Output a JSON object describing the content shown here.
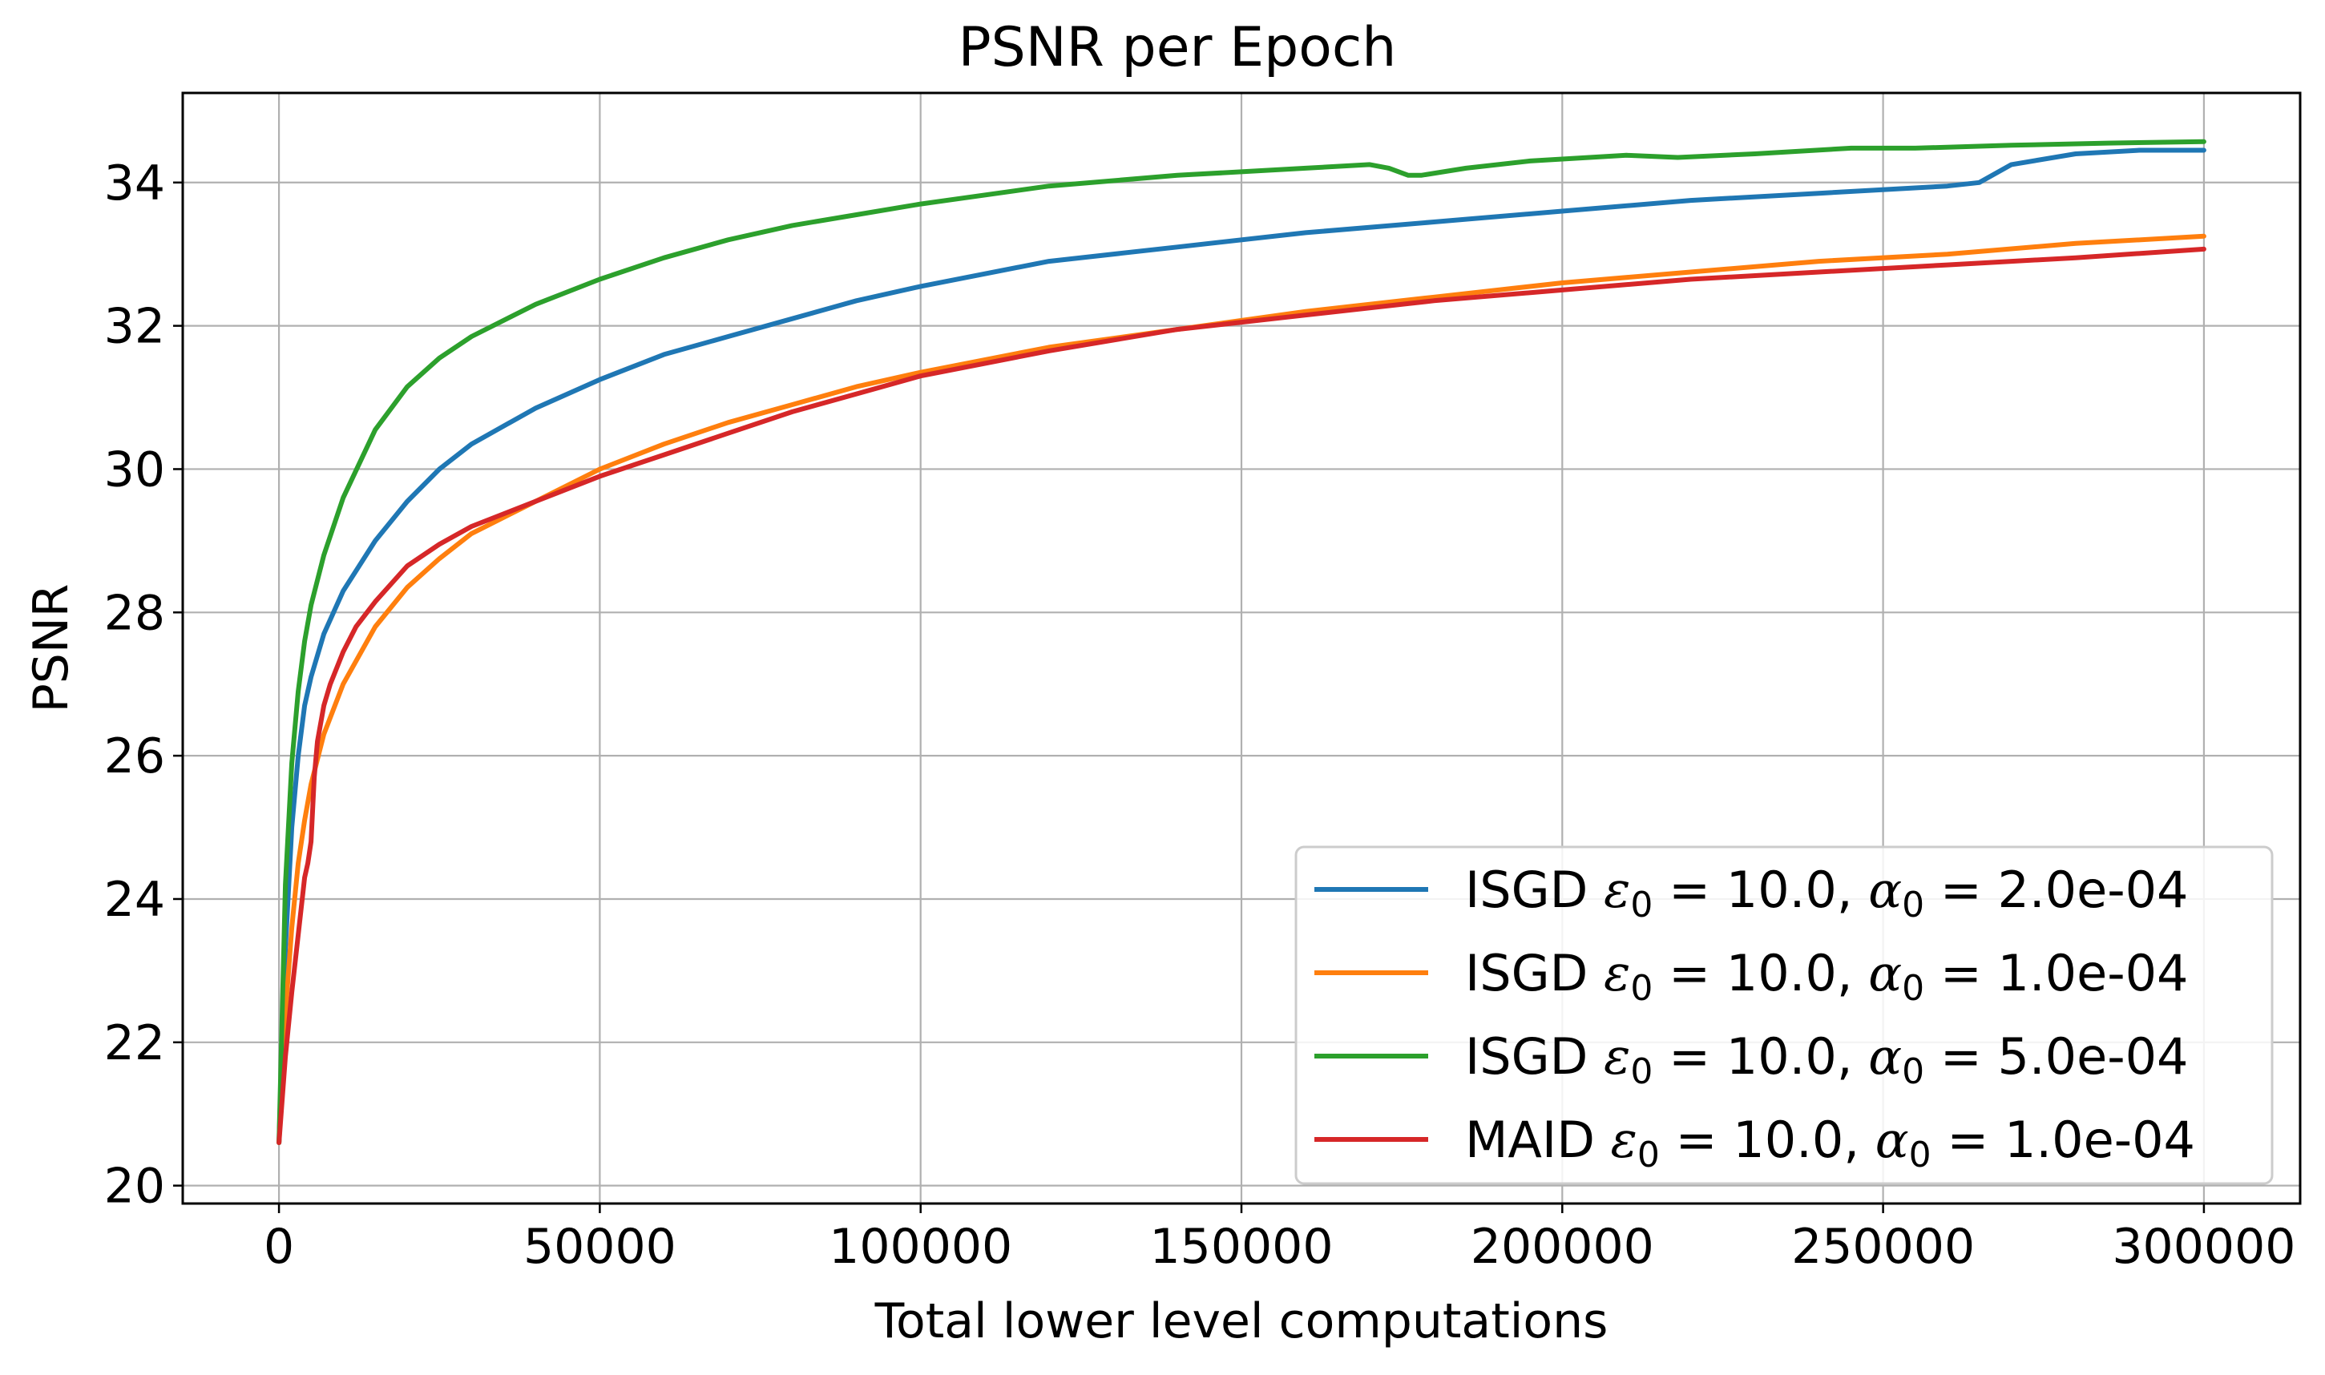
{
  "chart_data": {
    "type": "line",
    "title": "PSNR per Epoch",
    "xlabel": "Total lower level computations",
    "ylabel": "PSNR",
    "xlim": [
      -15000,
      315000
    ],
    "ylim": [
      19.75,
      35.25
    ],
    "xticks": [
      0,
      50000,
      100000,
      150000,
      200000,
      250000,
      300000
    ],
    "xtick_labels": [
      "0",
      "50000",
      "100000",
      "150000",
      "200000",
      "250000",
      "300000"
    ],
    "yticks": [
      20,
      22,
      24,
      26,
      28,
      30,
      32,
      34
    ],
    "ytick_labels": [
      "20",
      "22",
      "24",
      "26",
      "28",
      "30",
      "32",
      "34"
    ],
    "grid": true,
    "legend_position": "lower-right",
    "series": [
      {
        "name": "ISGD ε0 = 10.0, α0 = 2.0e-04",
        "legend": {
          "method": "ISGD",
          "eps": "10.0",
          "alpha": "2.0e-04"
        },
        "color": "#1f77b4",
        "x": [
          0,
          1000,
          2000,
          3000,
          4000,
          5000,
          7000,
          10000,
          15000,
          20000,
          25000,
          30000,
          40000,
          50000,
          60000,
          70000,
          80000,
          90000,
          100000,
          120000,
          140000,
          160000,
          180000,
          200000,
          220000,
          240000,
          260000,
          265000,
          270000,
          280000,
          290000,
          300000
        ],
        "y": [
          20.6,
          23.3,
          25.0,
          26.0,
          26.7,
          27.1,
          27.7,
          28.3,
          29.0,
          29.55,
          30.0,
          30.35,
          30.85,
          31.25,
          31.6,
          31.85,
          32.1,
          32.35,
          32.55,
          32.9,
          33.1,
          33.3,
          33.45,
          33.6,
          33.75,
          33.85,
          33.95,
          34.0,
          34.25,
          34.4,
          34.45,
          34.45
        ]
      },
      {
        "name": "ISGD ε0 = 10.0, α0 = 1.0e-04",
        "legend": {
          "method": "ISGD",
          "eps": "10.0",
          "alpha": "1.0e-04"
        },
        "color": "#ff7f0e",
        "x": [
          0,
          1000,
          2000,
          3000,
          4000,
          5000,
          7000,
          10000,
          15000,
          20000,
          25000,
          30000,
          40000,
          50000,
          60000,
          70000,
          80000,
          90000,
          100000,
          120000,
          140000,
          160000,
          180000,
          200000,
          220000,
          240000,
          260000,
          280000,
          300000
        ],
        "y": [
          20.6,
          22.4,
          23.6,
          24.5,
          25.1,
          25.6,
          26.3,
          27.0,
          27.8,
          28.35,
          28.75,
          29.1,
          29.55,
          30.0,
          30.35,
          30.65,
          30.9,
          31.15,
          31.35,
          31.7,
          31.95,
          32.2,
          32.4,
          32.6,
          32.75,
          32.9,
          33.0,
          33.15,
          33.25
        ]
      },
      {
        "name": "ISGD ε0 = 10.0, α0 = 5.0e-04",
        "legend": {
          "method": "ISGD",
          "eps": "10.0",
          "alpha": "5.0e-04"
        },
        "color": "#2ca02c",
        "x": [
          0,
          1000,
          2000,
          3000,
          4000,
          5000,
          7000,
          10000,
          15000,
          20000,
          25000,
          30000,
          40000,
          50000,
          60000,
          70000,
          80000,
          90000,
          100000,
          120000,
          140000,
          160000,
          170000,
          173000,
          176000,
          178000,
          185000,
          195000,
          210000,
          218000,
          230000,
          245000,
          255000,
          270000,
          285000,
          300000
        ],
        "y": [
          20.6,
          24.2,
          25.9,
          26.9,
          27.6,
          28.1,
          28.8,
          29.6,
          30.55,
          31.15,
          31.55,
          31.85,
          32.3,
          32.65,
          32.95,
          33.2,
          33.4,
          33.55,
          33.7,
          33.95,
          34.1,
          34.2,
          34.25,
          34.2,
          34.1,
          34.1,
          34.2,
          34.3,
          34.38,
          34.35,
          34.4,
          34.48,
          34.48,
          34.52,
          34.55,
          34.57
        ]
      },
      {
        "name": "MAID ε0 = 10.0, α0 = 1.0e-04",
        "legend": {
          "method": "MAID",
          "eps": "10.0",
          "alpha": "1.0e-04"
        },
        "color": "#d62728",
        "x": [
          0,
          1000,
          2000,
          3000,
          4000,
          4500,
          5000,
          5500,
          6000,
          7000,
          8000,
          10000,
          12000,
          15000,
          20000,
          25000,
          30000,
          40000,
          50000,
          60000,
          70000,
          80000,
          90000,
          100000,
          120000,
          140000,
          160000,
          180000,
          200000,
          220000,
          240000,
          260000,
          280000,
          300000
        ],
        "y": [
          20.6,
          21.8,
          22.7,
          23.5,
          24.3,
          24.5,
          24.8,
          25.7,
          26.2,
          26.7,
          27.0,
          27.45,
          27.8,
          28.15,
          28.65,
          28.95,
          29.2,
          29.55,
          29.9,
          30.2,
          30.5,
          30.8,
          31.05,
          31.3,
          31.65,
          31.95,
          32.15,
          32.35,
          32.5,
          32.65,
          32.75,
          32.85,
          32.95,
          33.07
        ]
      }
    ]
  }
}
